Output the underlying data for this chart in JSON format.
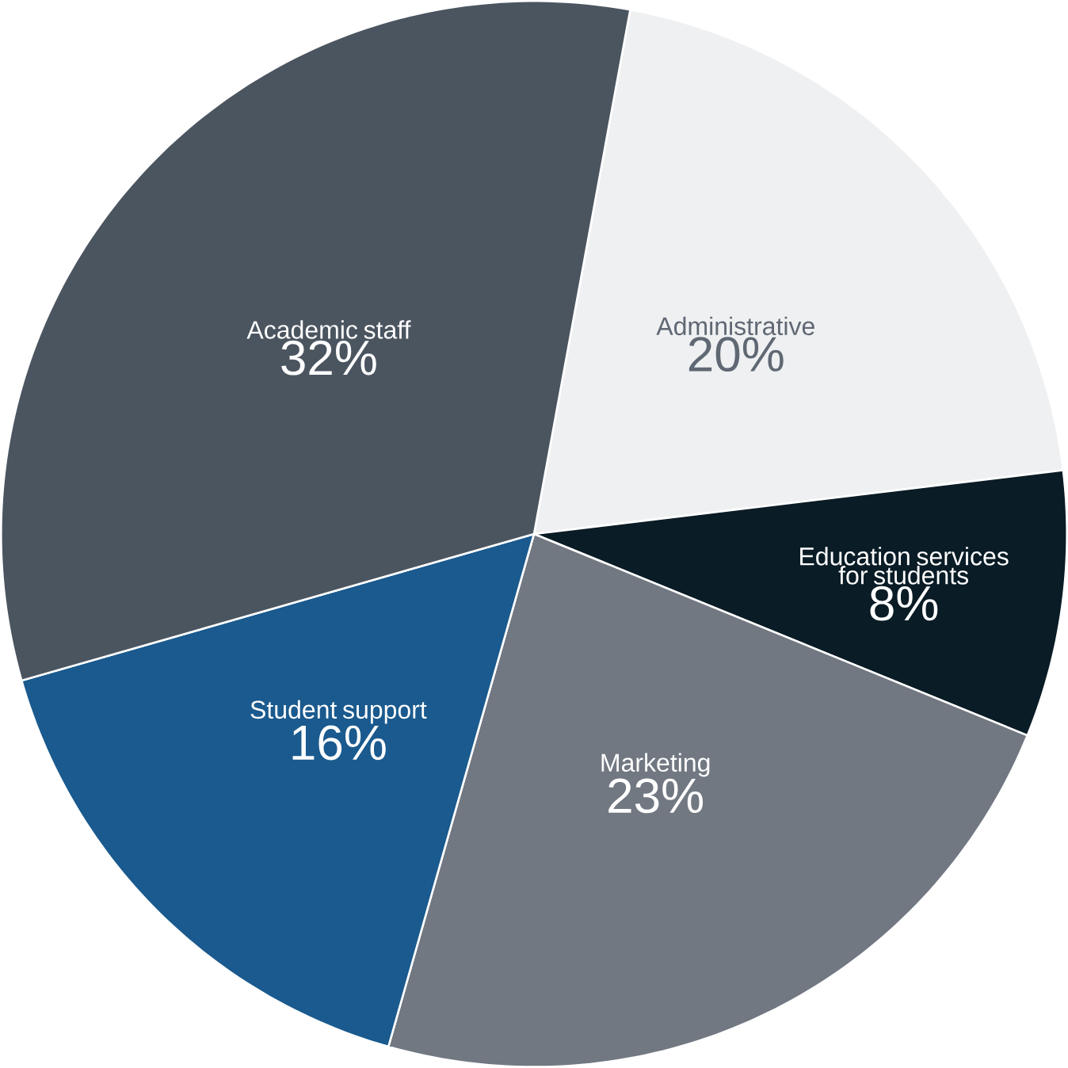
{
  "chart_data": {
    "type": "pie",
    "categories": [
      "Administrative",
      "Education services for students",
      "Marketing",
      "Student support",
      "Academic staff"
    ],
    "values": [
      20,
      8,
      23,
      16,
      32
    ],
    "value_labels": [
      "20%",
      "8%",
      "23%",
      "16%",
      "32%"
    ],
    "colors": [
      "#eff0f2",
      "#0a1c26",
      "#717882",
      "#1a5a8e",
      "#4b5560"
    ]
  }
}
